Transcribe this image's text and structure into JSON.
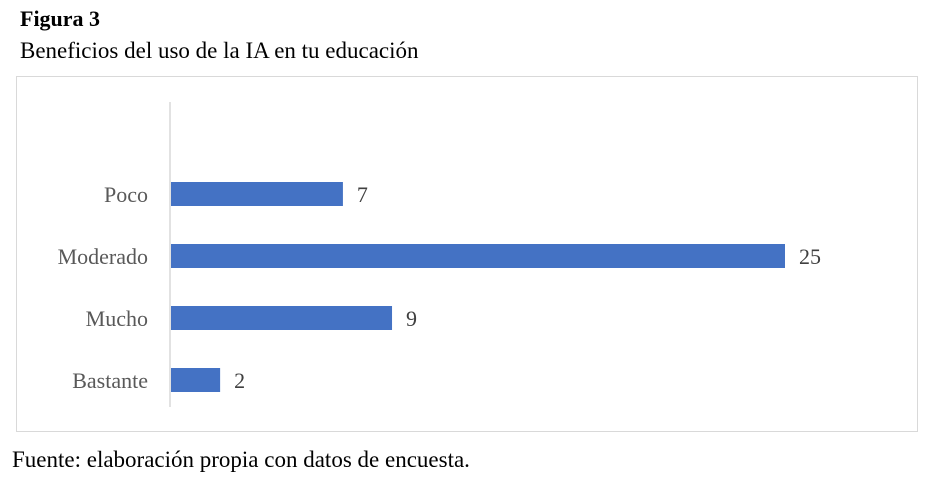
{
  "figure": {
    "label": "Figura 3",
    "title": "Beneficios del uso de la IA en tu educación",
    "source": "Fuente: elaboración propia con datos de encuesta."
  },
  "chart_data": {
    "type": "bar",
    "orientation": "horizontal",
    "categories": [
      "Poco",
      "Moderado",
      "Mucho",
      "Bastante"
    ],
    "values": [
      7,
      25,
      9,
      2
    ],
    "title": "",
    "xlabel": "",
    "ylabel": "",
    "xlim": [
      0,
      25
    ],
    "grid": false,
    "data_labels": true,
    "bar_color": "#4472C4"
  }
}
